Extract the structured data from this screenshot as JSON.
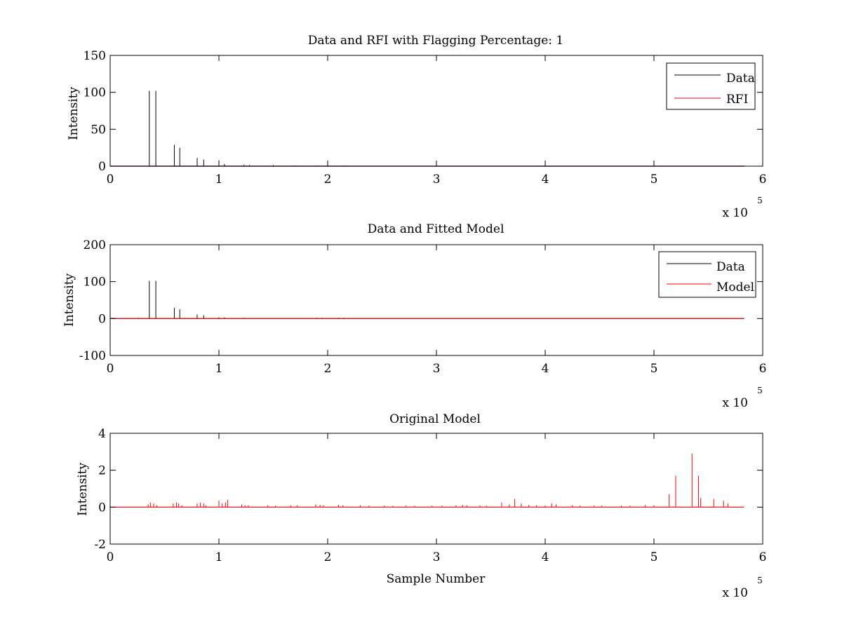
{
  "figure": {
    "background": "#ffffff",
    "colors": {
      "data": "#000000",
      "rfi": "#ff0000",
      "model": "#ff0000"
    }
  },
  "chart_data": [
    {
      "type": "line",
      "title": "Data and RFI with Flagging Percentage: 1",
      "xlabel": "",
      "ylabel": "Intensity",
      "xlim": [
        0,
        600000
      ],
      "ylim": [
        0,
        150
      ],
      "x_ticks": [
        "0",
        "1",
        "2",
        "3",
        "4",
        "5",
        "6"
      ],
      "y_ticks": [
        "0",
        "50",
        "100",
        "150"
      ],
      "x_multiplier": {
        "base": "x 10",
        "exponent": "5"
      },
      "legend": {
        "placement": "top-right",
        "entries": [
          "Data",
          "RFI"
        ]
      },
      "grid": false,
      "x_end": 583000,
      "series": [
        {
          "name": "Data",
          "color": "#000000",
          "baseline": 0,
          "spikes": [
            [
              36000,
              102
            ],
            [
              42000,
              102
            ],
            [
              59000,
              29
            ],
            [
              64000,
              25
            ],
            [
              80000,
              11
            ],
            [
              86000,
              9
            ],
            [
              100000,
              8
            ],
            [
              105000,
              3
            ],
            [
              123000,
              2
            ],
            [
              128000,
              1.5
            ],
            [
              150000,
              1.5
            ],
            [
              170000,
              1
            ],
            [
              190000,
              1
            ],
            [
              200000,
              0.8
            ],
            [
              215000,
              0.8
            ]
          ]
        },
        {
          "name": "RFI",
          "color": "#ff0000",
          "baseline": 0,
          "spikes": []
        }
      ]
    },
    {
      "type": "line",
      "title": "Data and Fitted Model",
      "xlabel": "",
      "ylabel": "Intensity",
      "xlim": [
        0,
        600000
      ],
      "ylim": [
        -100,
        200
      ],
      "x_ticks": [
        "0",
        "1",
        "2",
        "3",
        "4",
        "5",
        "6"
      ],
      "y_ticks": [
        "-100",
        "0",
        "100",
        "200"
      ],
      "x_multiplier": {
        "base": "x 10",
        "exponent": "5"
      },
      "legend": {
        "placement": "top-right",
        "entries": [
          "Data",
          "Model"
        ]
      },
      "grid": false,
      "x_end": 583000,
      "series": [
        {
          "name": "Data",
          "color": "#000000",
          "baseline": 0,
          "spikes": [
            [
              26000,
              2
            ],
            [
              36000,
              102
            ],
            [
              42000,
              102
            ],
            [
              59000,
              29
            ],
            [
              64000,
              25
            ],
            [
              80000,
              11
            ],
            [
              86000,
              9
            ],
            [
              100000,
              3
            ],
            [
              105000,
              3
            ],
            [
              123000,
              2
            ],
            [
              150000,
              1.5
            ],
            [
              175000,
              1
            ],
            [
              190000,
              2
            ],
            [
              195000,
              2
            ],
            [
              210000,
              2
            ],
            [
              215000,
              2
            ],
            [
              230000,
              1
            ]
          ]
        },
        {
          "name": "Model",
          "color": "#ff0000",
          "baseline": 0,
          "spikes": [
            [
              2000,
              2
            ]
          ]
        }
      ]
    },
    {
      "type": "line",
      "title": "Original Model",
      "xlabel": "Sample Number",
      "ylabel": "Intensity",
      "xlim": [
        0,
        600000
      ],
      "ylim": [
        -2,
        4
      ],
      "x_ticks": [
        "0",
        "1",
        "2",
        "3",
        "4",
        "5",
        "6"
      ],
      "y_ticks": [
        "-2",
        "0",
        "2",
        "4"
      ],
      "x_multiplier": {
        "base": "x 10",
        "exponent": "5"
      },
      "grid": false,
      "x_end": 583000,
      "series": [
        {
          "name": "",
          "color": "#ff0000",
          "baseline": 0,
          "spikes": [
            [
              35000,
              0.15
            ],
            [
              37000,
              0.25
            ],
            [
              40000,
              0.2
            ],
            [
              43000,
              0.1
            ],
            [
              58000,
              0.2
            ],
            [
              61000,
              0.25
            ],
            [
              63000,
              0.2
            ],
            [
              66000,
              0.1
            ],
            [
              80000,
              0.2
            ],
            [
              83000,
              0.25
            ],
            [
              86000,
              0.2
            ],
            [
              88000,
              0.1
            ],
            [
              100000,
              0.35
            ],
            [
              103000,
              0.2
            ],
            [
              106000,
              0.25
            ],
            [
              108000,
              0.4
            ],
            [
              121000,
              0.15
            ],
            [
              124000,
              0.1
            ],
            [
              127000,
              0.1
            ],
            [
              145000,
              0.1
            ],
            [
              152000,
              0.08
            ],
            [
              166000,
              0.1
            ],
            [
              172000,
              0.1
            ],
            [
              189000,
              0.15
            ],
            [
              193000,
              0.12
            ],
            [
              196000,
              0.1
            ],
            [
              210000,
              0.12
            ],
            [
              214000,
              0.1
            ],
            [
              230000,
              0.1
            ],
            [
              238000,
              0.08
            ],
            [
              252000,
              0.08
            ],
            [
              260000,
              0.08
            ],
            [
              272000,
              0.08
            ],
            [
              280000,
              0.08
            ],
            [
              296000,
              0.08
            ],
            [
              305000,
              0.08
            ],
            [
              318000,
              0.1
            ],
            [
              324000,
              0.12
            ],
            [
              328000,
              0.1
            ],
            [
              340000,
              0.1
            ],
            [
              346000,
              0.08
            ],
            [
              360000,
              0.25
            ],
            [
              367000,
              0.15
            ],
            [
              372000,
              0.45
            ],
            [
              378000,
              0.2
            ],
            [
              385000,
              0.12
            ],
            [
              392000,
              0.1
            ],
            [
              400000,
              0.1
            ],
            [
              406000,
              0.2
            ],
            [
              410000,
              0.15
            ],
            [
              425000,
              0.1
            ],
            [
              432000,
              0.08
            ],
            [
              445000,
              0.08
            ],
            [
              452000,
              0.08
            ],
            [
              470000,
              0.08
            ],
            [
              478000,
              0.08
            ],
            [
              492000,
              0.12
            ],
            [
              500000,
              0.1
            ],
            [
              514000,
              0.7
            ],
            [
              520000,
              1.7
            ],
            [
              535000,
              2.9
            ],
            [
              541000,
              1.7
            ],
            [
              543000,
              0.5
            ],
            [
              555000,
              0.45
            ],
            [
              564000,
              0.35
            ],
            [
              568000,
              0.2
            ]
          ]
        }
      ]
    }
  ]
}
